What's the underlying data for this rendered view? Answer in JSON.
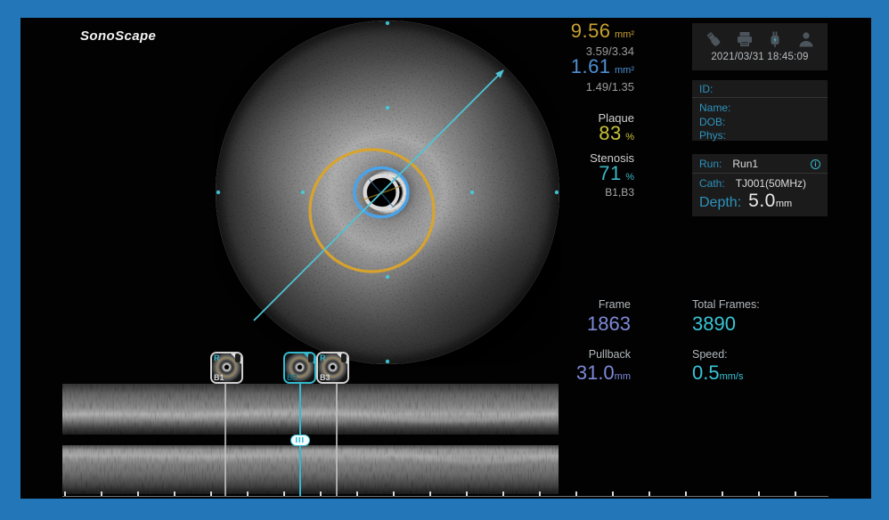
{
  "brand": {
    "logo": "SonoScape"
  },
  "measurements": {
    "area1": {
      "value": "9.56",
      "unit": "mm²",
      "sub": "3.59/3.34"
    },
    "area2": {
      "value": "1.61",
      "unit": "mm²",
      "sub": "1.49/1.35"
    },
    "plaque": {
      "label": "Plaque",
      "value": "83",
      "unit": "%"
    },
    "stenosis": {
      "label": "Stenosis",
      "value": "71",
      "unit": "%",
      "sub": "B1,B3"
    }
  },
  "frame_info": {
    "frame_label": "Frame",
    "frame_value": "1863",
    "total_label": "Total Frames:",
    "total_value": "3890",
    "pullback_label": "Pullback",
    "pullback_value": "31.0",
    "pullback_unit": "mm",
    "speed_label": "Speed:",
    "speed_value": "0.5",
    "speed_unit": "mm/s"
  },
  "status_bar": {
    "timestamp": "2021/03/31 18:45:09",
    "icons": [
      "usb-icon",
      "printer-icon",
      "plug-icon",
      "user-icon"
    ]
  },
  "patient": {
    "id_label": "ID:",
    "name_label": "Name:",
    "dob_label": "DOB:",
    "phys_label": "Phys:"
  },
  "run_panel": {
    "run_label": "Run:",
    "run_value": "Run1",
    "cath_label": "Cath:",
    "cath_value": "TJ001(50MHz)",
    "depth_label": "Depth:",
    "depth_value": "5.0",
    "depth_unit": "mm"
  },
  "bookmarks": [
    {
      "id": "B1",
      "marker": "R",
      "selected": false
    },
    {
      "id": "B2",
      "marker": "",
      "selected": true
    },
    {
      "id": "B3",
      "marker": "R",
      "selected": false
    }
  ],
  "colors": {
    "frame_blue": "#2377b9",
    "accent_cyan": "#35b9ce",
    "accent_yellow": "#c8a033",
    "plaque_yellow": "#c9c23a",
    "accent_blue": "#4e8fd3",
    "stenosis_cyan": "#3cb6c6",
    "frame_violet": "#7e8ad8",
    "total_cyan": "#3ac4d6",
    "label_blue": "#2d93bd",
    "vessel_contour": "#dba428",
    "lumen_contour": "#4aa3e8"
  }
}
